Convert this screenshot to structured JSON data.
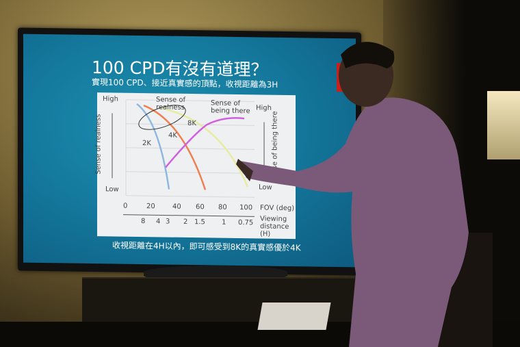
{
  "slide": {
    "title": "100 CPD有沒有道理？",
    "subtitle": "實現100 CPD、接近真實感的頂點，收視距離為3H",
    "chart": {
      "left_high": "High",
      "left_low": "Low",
      "left_axis": "Sense of realness",
      "right_high": "High",
      "right_low": "Low",
      "right_axis": "Sense of being there",
      "annotation_realness": "Sense of realness",
      "annotation_being_there": "Sense of being there",
      "curve_2k": "2K",
      "curve_4k": "4K",
      "curve_8k": "8K",
      "fov_ticks": [
        "0",
        "20",
        "40",
        "60",
        "80",
        "100"
      ],
      "fov_label": "FOV (deg)",
      "distance_ticks": [
        "8",
        "4",
        "3",
        "2",
        "1.5",
        "1",
        "0.75"
      ],
      "distance_label": "Viewing distance (H)"
    },
    "caption": "收視距離在4H以內，即可感受到8K的真實感優於4K"
  }
}
